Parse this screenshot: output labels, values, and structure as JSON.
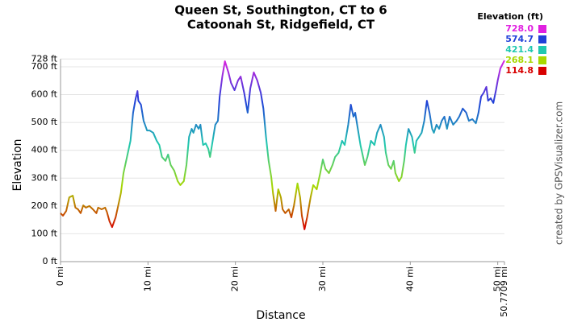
{
  "chart_data": {
    "type": "line",
    "title_lines": [
      "Queen St, Southington, CT to 6",
      "Catoonah St, Ridgefield, CT"
    ],
    "xlabel": "Distance",
    "ylabel": "Elevation",
    "credit": "created by GPSVisualizer.com",
    "xlim": [
      0,
      50.7709
    ],
    "ylim": [
      0,
      728
    ],
    "xticks": [
      {
        "value": 0,
        "label": "0 mi"
      },
      {
        "value": 10,
        "label": "10 mi"
      },
      {
        "value": 20,
        "label": "20 mi"
      },
      {
        "value": 30,
        "label": "30 mi"
      },
      {
        "value": 40,
        "label": "40 mi"
      },
      {
        "value": 50,
        "label": "50 mi"
      },
      {
        "value": 50.7709,
        "label": "50.7709 mi"
      }
    ],
    "yticks": [
      {
        "value": 0,
        "label": "0 ft"
      },
      {
        "value": 100,
        "label": "100 ft"
      },
      {
        "value": 200,
        "label": "200 ft"
      },
      {
        "value": 300,
        "label": "300 ft"
      },
      {
        "value": 400,
        "label": "400 ft"
      },
      {
        "value": 500,
        "label": "500 ft"
      },
      {
        "value": 600,
        "label": "600 ft"
      },
      {
        "value": 700,
        "label": "700 ft"
      },
      {
        "value": 728,
        "label": "728 ft"
      }
    ],
    "grid": true,
    "legend": {
      "title": "Elevation (ft)",
      "entries": [
        {
          "value": 728.0,
          "label": "728.0",
          "color": "#e020e0"
        },
        {
          "value": 574.7,
          "label": "574.7",
          "color": "#2040d8"
        },
        {
          "value": 421.4,
          "label": "421.4",
          "color": "#20c8b0"
        },
        {
          "value": 268.1,
          "label": "268.1",
          "color": "#a8d800"
        },
        {
          "value": 114.8,
          "label": "114.8",
          "color": "#d80000"
        }
      ]
    },
    "x": [
      0,
      0.28,
      0.65,
      1.0,
      1.4,
      1.7,
      2.0,
      2.3,
      2.6,
      2.9,
      3.3,
      3.7,
      4.1,
      4.3,
      4.7,
      5.1,
      5.3,
      5.6,
      5.9,
      6.3,
      6.6,
      6.9,
      7.2,
      7.6,
      8.0,
      8.3,
      8.6,
      8.8,
      8.9,
      9.2,
      9.5,
      9.9,
      10.2,
      10.6,
      11.0,
      11.3,
      11.6,
      12.0,
      12.3,
      12.6,
      13.0,
      13.4,
      13.7,
      14.1,
      14.4,
      14.7,
      15.0,
      15.2,
      15.5,
      15.8,
      16.0,
      16.3,
      16.6,
      16.9,
      17.1,
      17.4,
      17.7,
      18.0,
      18.2,
      18.5,
      18.8,
      19.2,
      19.5,
      19.9,
      20.3,
      20.6,
      21.0,
      21.4,
      21.7,
      22.1,
      22.5,
      22.9,
      23.2,
      23.5,
      23.8,
      24.1,
      24.3,
      24.6,
      24.9,
      25.2,
      25.4,
      25.7,
      26.1,
      26.4,
      26.7,
      27.1,
      27.4,
      27.6,
      27.9,
      28.2,
      28.6,
      28.9,
      29.3,
      29.7,
      30.0,
      30.3,
      30.7,
      31.1,
      31.4,
      31.8,
      32.2,
      32.5,
      32.9,
      33.2,
      33.5,
      33.7,
      34.0,
      34.3,
      34.6,
      34.8,
      35.1,
      35.5,
      35.9,
      36.2,
      36.6,
      37.0,
      37.2,
      37.5,
      37.8,
      38.1,
      38.3,
      38.7,
      39.0,
      39.3,
      39.5,
      39.8,
      40.2,
      40.5,
      40.7,
      41.0,
      41.3,
      41.6,
      41.9,
      42.2,
      42.5,
      42.7,
      43.0,
      43.3,
      43.6,
      43.9,
      44.2,
      44.5,
      44.9,
      45.3,
      45.6,
      46.0,
      46.4,
      46.7,
      47.1,
      47.5,
      47.8,
      48.1,
      48.4,
      48.7,
      48.9,
      49.2,
      49.5,
      49.8,
      50.0,
      50.3,
      50.7709
    ],
    "values": [
      174,
      165,
      182,
      231,
      237,
      194,
      188,
      174,
      202,
      194,
      200,
      188,
      174,
      194,
      188,
      194,
      179,
      145,
      124,
      159,
      202,
      246,
      318,
      376,
      434,
      535,
      587,
      613,
      578,
      564,
      506,
      471,
      471,
      463,
      434,
      419,
      376,
      362,
      385,
      347,
      327,
      289,
      275,
      289,
      347,
      448,
      477,
      463,
      492,
      477,
      492,
      419,
      425,
      405,
      376,
      434,
      492,
      506,
      593,
      665,
      720,
      680,
      642,
      616,
      651,
      665,
      607,
      535,
      622,
      680,
      651,
      607,
      550,
      448,
      362,
      304,
      246,
      182,
      260,
      231,
      188,
      174,
      188,
      159,
      202,
      281,
      231,
      165,
      116,
      159,
      231,
      275,
      260,
      318,
      367,
      333,
      318,
      347,
      376,
      391,
      434,
      419,
      492,
      564,
      521,
      535,
      477,
      419,
      376,
      347,
      376,
      434,
      419,
      463,
      492,
      448,
      391,
      347,
      333,
      362,
      318,
      289,
      304,
      362,
      419,
      477,
      448,
      391,
      434,
      448,
      463,
      506,
      578,
      535,
      477,
      463,
      492,
      477,
      506,
      521,
      477,
      521,
      492,
      506,
      521,
      550,
      535,
      506,
      512,
      497,
      535,
      593,
      607,
      628,
      578,
      587,
      570,
      616,
      651,
      694,
      723
    ]
  }
}
